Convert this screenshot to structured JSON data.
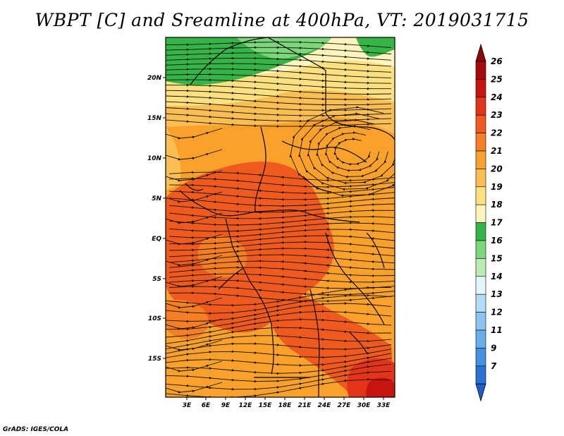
{
  "title": "WBPT [C] and Sreamline at 400hPa, VT: 2019031715",
  "footer": "GrADS: IGES/COLA",
  "map": {
    "lat_labels": [
      "20N",
      "15N",
      "10N",
      "5N",
      "EQ",
      "5S",
      "10S",
      "15S"
    ],
    "lon_labels": [
      "3E",
      "6E",
      "9E",
      "12E",
      "15E",
      "18E",
      "21E",
      "24E",
      "27E",
      "30E",
      "33E"
    ]
  },
  "colorbar": {
    "levels": [
      {
        "label": "26",
        "color": "#a50a0a"
      },
      {
        "label": "25",
        "color": "#c8140f"
      },
      {
        "label": "24",
        "color": "#e3341a"
      },
      {
        "label": "23",
        "color": "#f05a1e"
      },
      {
        "label": "22",
        "color": "#f57f22"
      },
      {
        "label": "21",
        "color": "#f9a12b"
      },
      {
        "label": "20",
        "color": "#fbbe52"
      },
      {
        "label": "19",
        "color": "#fde07f"
      },
      {
        "label": "18",
        "color": "#fff4bd"
      },
      {
        "label": "17",
        "color": "#36b547"
      },
      {
        "label": "16",
        "color": "#7cd67a"
      },
      {
        "label": "15",
        "color": "#b9ecb5"
      },
      {
        "label": "14",
        "color": "#e3f6f7"
      },
      {
        "label": "13",
        "color": "#b3dcf6"
      },
      {
        "label": "12",
        "color": "#8cc5f2"
      },
      {
        "label": "11",
        "color": "#67aeec"
      },
      {
        "label": "9",
        "color": "#4391e3"
      },
      {
        "label": "7",
        "color": "#2a73d6"
      }
    ],
    "top_arrow_color": "#8e0707",
    "bottom_arrow_color": "#1e5fc4"
  }
}
